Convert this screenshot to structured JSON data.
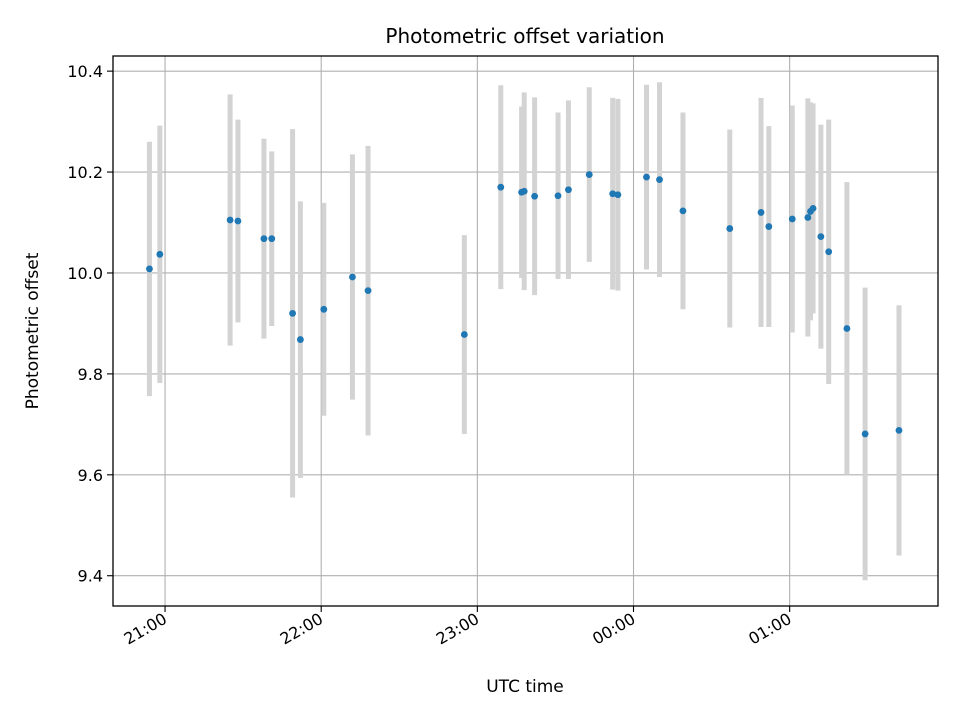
{
  "chart_data": {
    "type": "scatter",
    "title": "Photometric offset variation",
    "xlabel": "UTC time",
    "ylabel": "Photometric offset",
    "grid": true,
    "x_unit": "UTC time",
    "xlim": [
      "20:40",
      "01:57"
    ],
    "ylim": [
      9.34,
      10.43
    ],
    "x_ticks": [
      "21:00",
      "22:00",
      "23:00",
      "00:00",
      "01:00"
    ],
    "y_ticks": [
      9.4,
      9.6,
      9.8,
      10.0,
      10.2,
      10.4
    ],
    "y_tick_labels": [
      "9.4",
      "9.6",
      "9.8",
      "10.0",
      "10.2",
      "10.4"
    ],
    "point_color": "#1f77b4",
    "errorbar_color": "#d3d3d3",
    "points": [
      {
        "t": "20:54",
        "y": 10.008,
        "err": 0.252
      },
      {
        "t": "20:58",
        "y": 10.037,
        "err": 0.255
      },
      {
        "t": "21:25",
        "y": 10.105,
        "err": 0.249
      },
      {
        "t": "21:28",
        "y": 10.103,
        "err": 0.201
      },
      {
        "t": "21:38",
        "y": 10.068,
        "err": 0.198
      },
      {
        "t": "21:41",
        "y": 10.068,
        "err": 0.173
      },
      {
        "t": "21:49",
        "y": 9.92,
        "err": 0.365
      },
      {
        "t": "21:52",
        "y": 9.868,
        "err": 0.274
      },
      {
        "t": "22:01",
        "y": 9.928,
        "err": 0.211
      },
      {
        "t": "22:12",
        "y": 9.992,
        "err": 0.243
      },
      {
        "t": "22:18",
        "y": 9.965,
        "err": 0.287
      },
      {
        "t": "22:55",
        "y": 9.878,
        "err": 0.197
      },
      {
        "t": "23:09",
        "y": 10.17,
        "err": 0.202
      },
      {
        "t": "23:17",
        "y": 10.16,
        "err": 0.17
      },
      {
        "t": "23:18",
        "y": 10.162,
        "err": 0.196
      },
      {
        "t": "23:22",
        "y": 10.152,
        "err": 0.196
      },
      {
        "t": "23:31",
        "y": 10.153,
        "err": 0.165
      },
      {
        "t": "23:35",
        "y": 10.165,
        "err": 0.177
      },
      {
        "t": "23:43",
        "y": 10.195,
        "err": 0.173
      },
      {
        "t": "23:52",
        "y": 10.157,
        "err": 0.19
      },
      {
        "t": "23:54",
        "y": 10.155,
        "err": 0.19
      },
      {
        "t": "00:05",
        "y": 10.19,
        "err": 0.183
      },
      {
        "t": "00:10",
        "y": 10.185,
        "err": 0.193
      },
      {
        "t": "00:19",
        "y": 10.123,
        "err": 0.195
      },
      {
        "t": "00:37",
        "y": 10.088,
        "err": 0.196
      },
      {
        "t": "00:49",
        "y": 10.12,
        "err": 0.227
      },
      {
        "t": "00:52",
        "y": 10.092,
        "err": 0.199
      },
      {
        "t": "01:01",
        "y": 10.107,
        "err": 0.225
      },
      {
        "t": "01:07",
        "y": 10.11,
        "err": 0.236
      },
      {
        "t": "01:08",
        "y": 10.122,
        "err": 0.216
      },
      {
        "t": "01:09",
        "y": 10.128,
        "err": 0.208
      },
      {
        "t": "01:12",
        "y": 10.072,
        "err": 0.222
      },
      {
        "t": "01:15",
        "y": 10.042,
        "err": 0.262
      },
      {
        "t": "01:22",
        "y": 9.89,
        "err": 0.29
      },
      {
        "t": "01:29",
        "y": 9.681,
        "err": 0.29
      },
      {
        "t": "01:42",
        "y": 9.688,
        "err": 0.248
      }
    ]
  }
}
